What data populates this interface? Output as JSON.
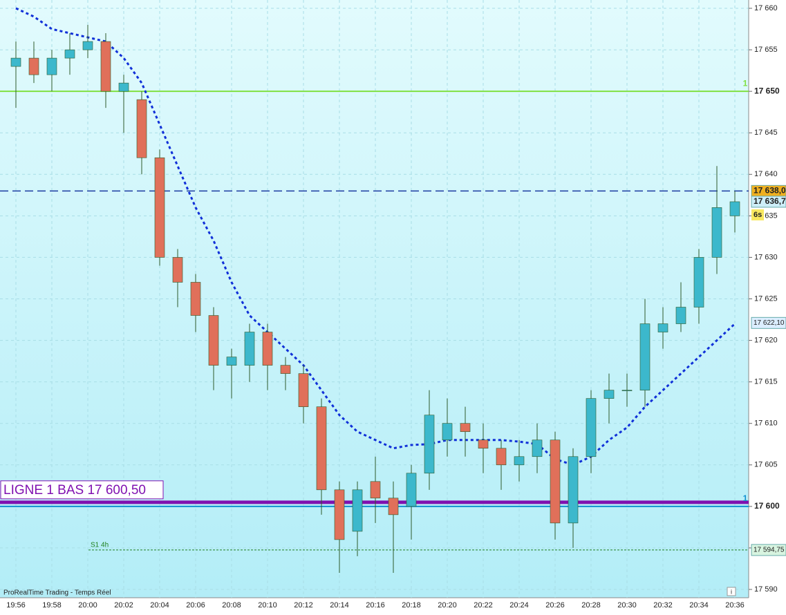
{
  "chart_data": {
    "type": "candlestick",
    "categories": [
      "19:56",
      null,
      "19:58",
      null,
      "20:00",
      null,
      "20:02",
      null,
      "20:04",
      null,
      "20:06",
      null,
      "20:08",
      null,
      "20:10",
      null,
      "20:12",
      null,
      "20:14",
      null,
      "20:16",
      null,
      "20:18",
      null,
      "20:20",
      null,
      "20:22",
      null,
      "20:24",
      null,
      "20:26",
      null,
      "20:28",
      null,
      "20:30",
      null,
      "20:32",
      null,
      "20:34",
      null,
      "20:36"
    ],
    "open": [
      17653,
      17654,
      17652,
      17654,
      17655,
      17656,
      17650,
      17649,
      17642,
      17630,
      17627,
      17623,
      17617,
      17617,
      17621,
      17617,
      17616,
      17612,
      17602,
      17597,
      17603,
      17601,
      17600,
      17604,
      17608,
      17610,
      17608,
      17607,
      17605,
      17606,
      17608,
      17598,
      17606,
      17613,
      17614,
      17614,
      17621,
      17622,
      17624,
      17630,
      17635
    ],
    "high": [
      17656,
      17656,
      17655,
      17657,
      17658,
      17657,
      17652,
      17650,
      17643,
      17631,
      17628,
      17624,
      17619,
      17622,
      17622,
      17618,
      17617,
      17613,
      17603,
      17603,
      17606,
      17603,
      17605,
      17614,
      17613,
      17612,
      17610,
      17608,
      17608,
      17610,
      17609,
      17607,
      17614,
      17616,
      17616,
      17625,
      17624,
      17627,
      17631,
      17641,
      17638
    ],
    "low": [
      17648,
      17651,
      17650,
      17652,
      17654,
      17648,
      17645,
      17640,
      17629,
      17624,
      17621,
      17614,
      17613,
      17615,
      17614,
      17614,
      17610,
      17599,
      17592,
      17594,
      17598,
      17592,
      17596,
      17602,
      17606,
      17606,
      17604,
      17602,
      17603,
      17604,
      17596,
      17595,
      17604,
      17610,
      17612,
      17612,
      17619,
      17621,
      17622,
      17628,
      17633
    ],
    "close": [
      17654,
      17652,
      17654,
      17655,
      17656,
      17650,
      17651,
      17642,
      17630,
      17627,
      17623,
      17617,
      17618,
      17621,
      17617,
      17616,
      17612,
      17602,
      17596,
      17602,
      17601,
      17599,
      17604,
      17611,
      17610,
      17609,
      17607,
      17605,
      17606,
      17608,
      17598,
      17606,
      17613,
      17614,
      17614,
      17622,
      17622,
      17624,
      17630,
      17636,
      17636.7
    ],
    "up_color": "#3cb8cc",
    "down_color": "#e0705a",
    "wick_color": "#2e5a2a",
    "moving_average": {
      "color": "#1030d8",
      "values": [
        17660,
        17659,
        17657.5,
        17657,
        17656.5,
        17656,
        17654,
        17651,
        17646,
        17641,
        17636,
        17632,
        17627,
        17623,
        17621,
        17619,
        17617,
        17614,
        17611,
        17609,
        17608,
        17607,
        17607.4,
        17607.5,
        17608,
        17608,
        17608,
        17608,
        17607.8,
        17607.5,
        17605.7,
        17605,
        17606,
        17608,
        17609.5,
        17612,
        17614,
        17616,
        17618,
        17620,
        17622
      ]
    },
    "ylim": [
      17589,
      17661
    ],
    "yticks": [
      {
        "value": 17590,
        "label": "17 590"
      },
      {
        "value": 17595,
        "label": "17 595"
      },
      {
        "value": 17600,
        "label": "17 600"
      },
      {
        "value": 17605,
        "label": "17 605"
      },
      {
        "value": 17610,
        "label": "17 610"
      },
      {
        "value": 17615,
        "label": "17 615"
      },
      {
        "value": 17620,
        "label": "17 620"
      },
      {
        "value": 17625,
        "label": "17 625"
      },
      {
        "value": 17630,
        "label": "17 630"
      },
      {
        "value": 17635,
        "label": "17 635"
      },
      {
        "value": 17640,
        "label": "17 640"
      },
      {
        "value": 17645,
        "label": "17 645"
      },
      {
        "value": 17650,
        "label": "17 650"
      },
      {
        "value": 17655,
        "label": "17 655"
      },
      {
        "value": 17660,
        "label": "17 660"
      }
    ],
    "grid": true,
    "hlines": [
      {
        "value": 17650,
        "color": "#80e040",
        "style": "solid",
        "label": "1"
      },
      {
        "value": 17638,
        "color": "#1a3aa0",
        "style": "dashed"
      },
      {
        "value": 17600.5,
        "color": "#8010b0",
        "style": "thick",
        "label": "LIGNE 1 BAS 17 600,50"
      },
      {
        "value": 17600,
        "color": "#1090d0",
        "style": "solid",
        "label": "1"
      },
      {
        "value": 17594.75,
        "color": "#208020",
        "style": "dotted",
        "label": "S1 4h"
      }
    ],
    "price_labels": [
      {
        "value": 17638,
        "label": "17 638,0",
        "color": "#f0b020"
      },
      {
        "value": 17636.7,
        "label": "17 636,7",
        "color": "#cdeef8"
      },
      {
        "value": 17622.1,
        "label": "17 622,10",
        "color": "#dceeff"
      },
      {
        "value": 17594.75,
        "label": "17 594,75",
        "color": "#d8f4e0"
      }
    ],
    "timer_label": "6s",
    "footer": "ProRealTime Trading - Temps Réel",
    "info_icon": "i"
  }
}
